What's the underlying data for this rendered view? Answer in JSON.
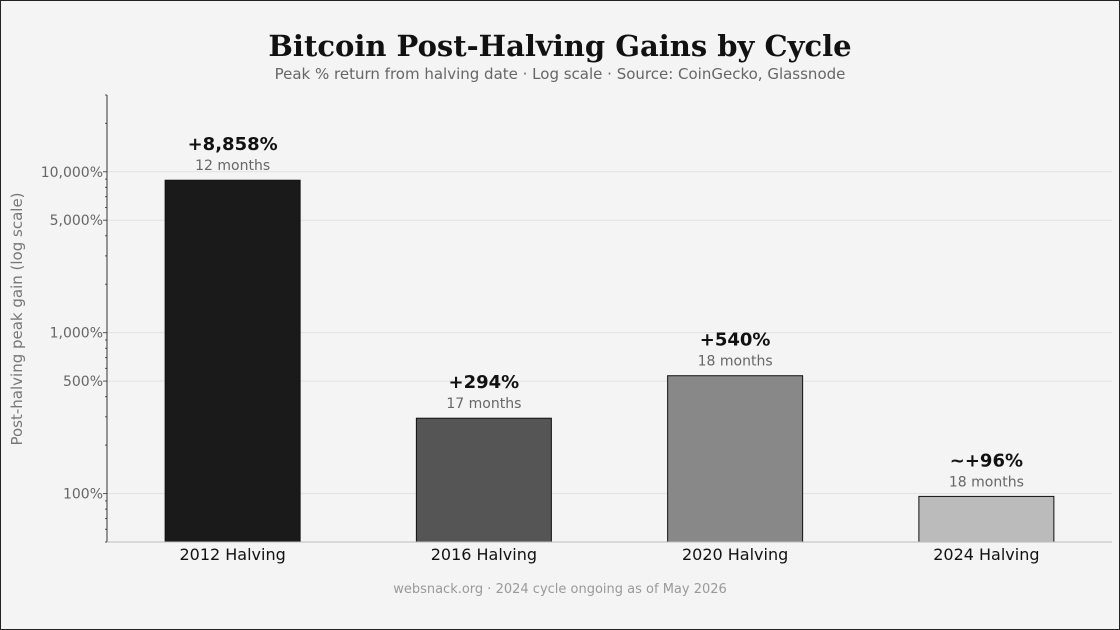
{
  "chart": {
    "title": "Bitcoin Post-Halving Gains by Cycle",
    "subtitle": "Peak % return from halving date · Log scale · Source: CoinGecko, Glassnode",
    "footer": "websnack.org  ·  2024 cycle ongoing as of May 2026"
  },
  "chart_data": {
    "type": "bar",
    "title": "Bitcoin Post-Halving Gains by Cycle",
    "subtitle": "Peak % return from halving date · Log scale · Source: CoinGecko, Glassnode",
    "xlabel": "",
    "ylabel": "Post-halving peak gain (log scale)",
    "yscale": "log",
    "ylim": [
      50,
      30000
    ],
    "grid": "horizontal at major ticks",
    "legend": "none",
    "categories": [
      "2012 Halving",
      "2016 Halving",
      "2020 Halving",
      "2024 Halving"
    ],
    "values": [
      8858,
      294,
      540,
      96
    ],
    "value_labels": [
      "+8,858%",
      "+294%",
      "+540%",
      "~+96%"
    ],
    "duration_labels": [
      "12 months",
      "17 months",
      "18 months",
      "18 months"
    ],
    "colors": [
      "#1a1a1a",
      "#555555",
      "#888888",
      "#bbbbbb"
    ],
    "yticks": [
      100,
      500,
      1000,
      5000,
      10000
    ],
    "ytick_labels": [
      "100%",
      "500%",
      "1,000%",
      "5,000%",
      "10,000%"
    ]
  }
}
